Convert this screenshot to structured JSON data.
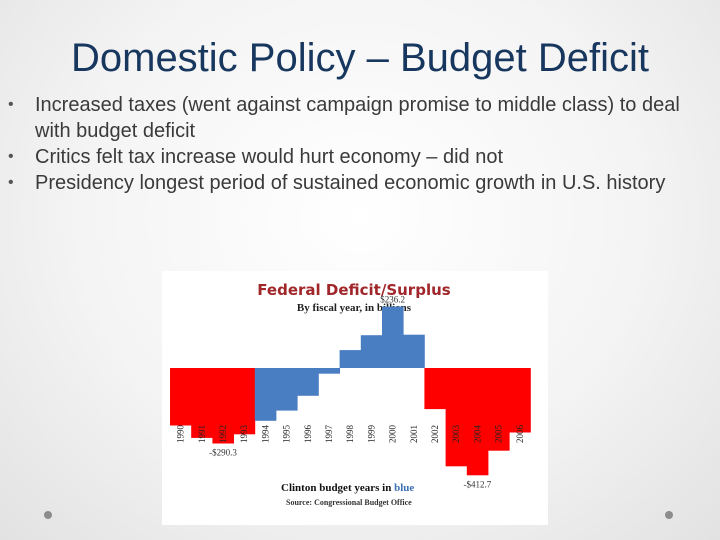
{
  "slide": {
    "title": "Domestic Policy – Budget Deficit",
    "bullets": [
      "Increased taxes (went against campaign promise to middle class) to deal with budget deficit",
      "Critics felt tax increase would hurt economy – did not",
      "Presidency longest period of sustained economic growth in U.S. history"
    ]
  },
  "chart_data": {
    "type": "bar",
    "title": "Federal Deficit/Surplus",
    "subtitle": "By fiscal year, in billions",
    "categories": [
      "1990",
      "1991",
      "1992",
      "1993",
      "1994",
      "1995",
      "1996",
      "1997",
      "1998",
      "1999",
      "2000",
      "2001",
      "2002",
      "2003",
      "2004",
      "2005",
      "2006"
    ],
    "values": [
      -221,
      -269,
      -290.3,
      -255,
      -203,
      -164,
      -107,
      -22,
      69,
      126,
      236.2,
      128,
      -158,
      -378,
      -412.7,
      -318,
      -248
    ],
    "colors": [
      "red",
      "red",
      "red",
      "red",
      "blue",
      "blue",
      "blue",
      "blue",
      "blue",
      "blue",
      "blue",
      "blue",
      "red",
      "red",
      "red",
      "red",
      "red"
    ],
    "color_hex": {
      "red": "#ff0000",
      "blue": "#4a7ec3"
    },
    "annotations": [
      {
        "category": "1992",
        "text": "-$290.3"
      },
      {
        "category": "2000",
        "text": "$236.2"
      },
      {
        "category": "2004",
        "text": "-$412.7"
      }
    ],
    "footer": {
      "prefix": "Clinton budget years in ",
      "highlight": "blue"
    },
    "source": "Source: Congressional Budget Office"
  }
}
